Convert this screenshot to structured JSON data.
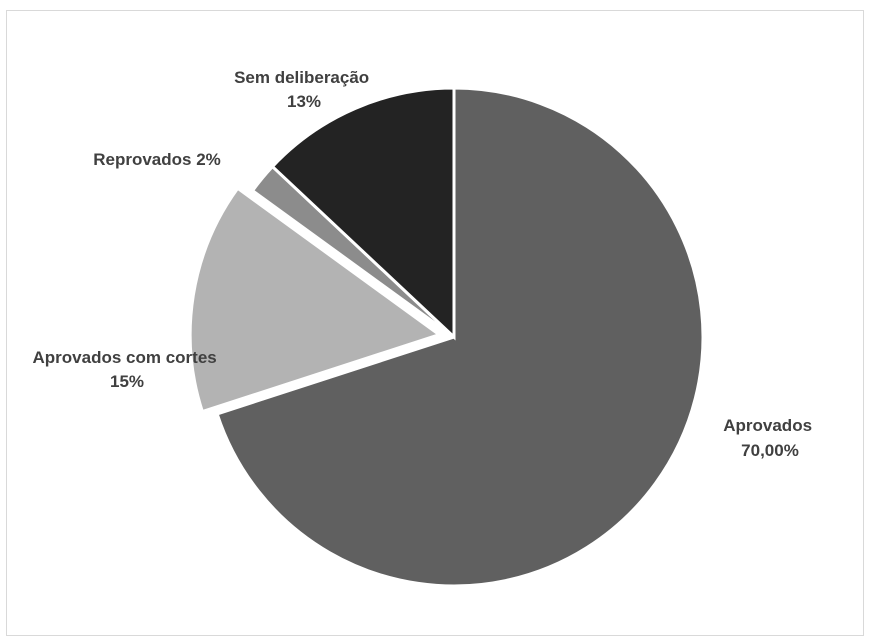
{
  "chart_data": {
    "type": "pie",
    "title": "",
    "legend": "none",
    "slices": [
      {
        "label": "Aprovados",
        "value_text": "70,00%",
        "value": 70.0,
        "color": "#606060"
      },
      {
        "label": "Aprovados com cortes",
        "value_text": "15%",
        "value": 15,
        "color": "#b3b3b3"
      },
      {
        "label": "Reprovados",
        "value_text": "2%",
        "value": 2,
        "color": "#8c8c8c"
      },
      {
        "label": "Sem deliberação",
        "value_text": "13%",
        "value": 13,
        "color": "#232323"
      }
    ]
  }
}
